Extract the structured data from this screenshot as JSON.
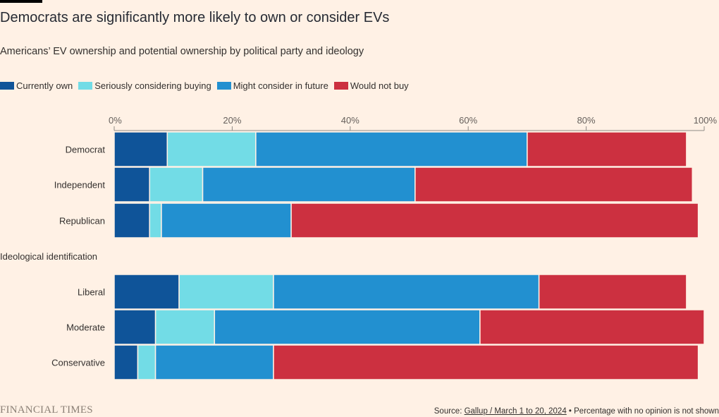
{
  "title": "Democrats are significantly more likely to own or consider EVs",
  "subtitle": "Americans’ EV ownership and potential ownership by political party and ideology",
  "footer": {
    "brand": "FINANCIAL TIMES",
    "source_prefix": "Source: ",
    "source_link": "Gallup / March 1 to 20, 2024",
    "source_note": " • Percentage with no opinion is not shown"
  },
  "colors": {
    "background": "#fff1e5",
    "currently_own": "#0f5499",
    "seriously_considering": "#72dce6",
    "might_consider": "#2290d0",
    "would_not_buy": "#cc3040"
  },
  "chart_data": {
    "type": "bar",
    "orientation": "horizontal",
    "stacked": true,
    "xlim": [
      0,
      100
    ],
    "x_ticks": [
      "0%",
      "20%",
      "40%",
      "60%",
      "80%",
      "100%"
    ],
    "x_tick_values": [
      0,
      20,
      40,
      60,
      80,
      100
    ],
    "legend_position": "top-left",
    "group_label": "Ideological identification",
    "categories": [
      "Democrat",
      "Independent",
      "Republican",
      "Liberal",
      "Moderate",
      "Conservative"
    ],
    "series": [
      {
        "name": "Currently own",
        "color": "#0f5499",
        "values": [
          9,
          6,
          6,
          11,
          7,
          4
        ]
      },
      {
        "name": "Seriously considering buying",
        "color": "#72dce6",
        "values": [
          15,
          9,
          2,
          16,
          10,
          3
        ]
      },
      {
        "name": "Might consider in future",
        "color": "#2290d0",
        "values": [
          46,
          36,
          22,
          45,
          45,
          20
        ]
      },
      {
        "name": "Would not buy",
        "color": "#cc3040",
        "values": [
          27,
          47,
          69,
          25,
          38,
          72
        ]
      }
    ]
  }
}
